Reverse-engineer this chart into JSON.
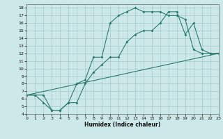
{
  "background_color": "#cce8e8",
  "grid_color": "#aacfcf",
  "line_color": "#2a7a6e",
  "xlabel": "Humidex (Indice chaleur)",
  "ylim": [
    4,
    18.5
  ],
  "xlim": [
    0,
    23
  ],
  "yticks": [
    4,
    5,
    6,
    7,
    8,
    9,
    10,
    11,
    12,
    13,
    14,
    15,
    16,
    17,
    18
  ],
  "xticks": [
    0,
    1,
    2,
    3,
    4,
    5,
    6,
    7,
    8,
    9,
    10,
    11,
    12,
    13,
    14,
    15,
    16,
    17,
    18,
    19,
    20,
    21,
    22,
    23
  ],
  "line1_x": [
    0,
    1,
    2,
    3,
    4,
    5,
    6,
    7,
    8,
    9,
    10,
    11,
    12,
    13,
    14,
    15,
    16,
    17,
    18,
    19,
    20,
    21,
    22,
    23
  ],
  "line1_y": [
    6.5,
    6.5,
    5.5,
    4.5,
    4.5,
    5.5,
    8.0,
    8.5,
    11.5,
    11.5,
    16.0,
    17.0,
    17.5,
    18.0,
    17.5,
    17.5,
    17.5,
    17.0,
    17.0,
    16.5,
    12.5,
    12.0,
    12.0,
    12.0
  ],
  "line2_x": [
    0,
    1,
    2,
    3,
    4,
    5,
    6,
    7,
    8,
    9,
    10,
    11,
    12,
    13,
    14,
    15,
    16,
    17,
    18,
    19,
    20,
    21,
    22,
    23
  ],
  "line2_y": [
    6.5,
    6.5,
    6.5,
    4.5,
    4.5,
    5.5,
    5.5,
    8.0,
    9.5,
    10.5,
    11.5,
    11.5,
    13.5,
    14.5,
    15.0,
    15.0,
    16.0,
    17.5,
    17.5,
    14.5,
    16.0,
    12.5,
    12.0,
    12.0
  ],
  "line3_x": [
    0,
    23
  ],
  "line3_y": [
    6.5,
    12.0
  ]
}
